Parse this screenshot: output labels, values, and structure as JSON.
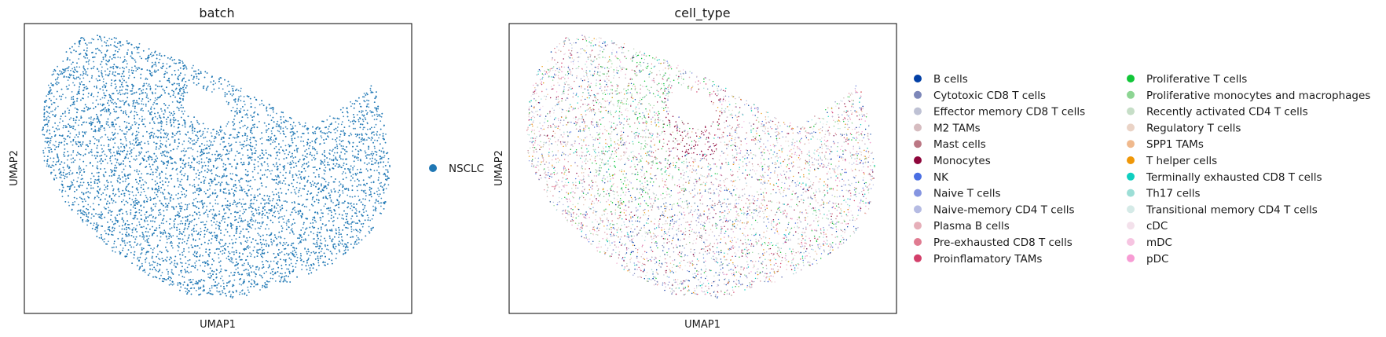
{
  "chart_data": [
    {
      "type": "scatter",
      "title": "batch",
      "xlabel": "UMAP1",
      "ylabel": "UMAP2",
      "grid": false,
      "ticks": "hidden",
      "legend_position": "right",
      "series": [
        {
          "name": "NSCLC",
          "color": "#1f77b4"
        }
      ]
    },
    {
      "type": "scatter",
      "title": "cell_type",
      "xlabel": "UMAP1",
      "ylabel": "UMAP2",
      "grid": false,
      "ticks": "hidden",
      "legend_position": "right",
      "legend_columns": 2,
      "series": [
        {
          "name": "B cells",
          "color": "#023fa5"
        },
        {
          "name": "Cytotoxic CD8 T cells",
          "color": "#7d87b9"
        },
        {
          "name": "Effector memory CD8 T cells",
          "color": "#bec1d4"
        },
        {
          "name": "M2 TAMs",
          "color": "#d6bcc0"
        },
        {
          "name": "Mast cells",
          "color": "#bb7784"
        },
        {
          "name": "Monocytes",
          "color": "#8e063b"
        },
        {
          "name": "NK",
          "color": "#4a6fe3"
        },
        {
          "name": "Naive T cells",
          "color": "#8595e1"
        },
        {
          "name": "Naive-memory CD4 T cells",
          "color": "#b5bbe3"
        },
        {
          "name": "Plasma B cells",
          "color": "#e6afb9"
        },
        {
          "name": "Pre-exhausted CD8 T cells",
          "color": "#e07b91"
        },
        {
          "name": "Proinflamatory TAMs",
          "color": "#d33f6a"
        },
        {
          "name": "Proliferative T cells",
          "color": "#11c638"
        },
        {
          "name": "Proliferative monocytes and macrophages",
          "color": "#8dd593"
        },
        {
          "name": "Recently activated CD4 T cells",
          "color": "#c6dec7"
        },
        {
          "name": "Regulatory T cells",
          "color": "#ead3c6"
        },
        {
          "name": "SPP1 TAMs",
          "color": "#f0b98d"
        },
        {
          "name": "T helper cells",
          "color": "#ef9708"
        },
        {
          "name": "Terminally exhausted CD8 T cells",
          "color": "#0fcfc0"
        },
        {
          "name": "Th17 cells",
          "color": "#9cded6"
        },
        {
          "name": "Transitional memory CD4 T cells",
          "color": "#d5eae7"
        },
        {
          "name": "cDC",
          "color": "#f3e1eb"
        },
        {
          "name": "mDC",
          "color": "#f6c4e1"
        },
        {
          "name": "pDC",
          "color": "#f79cd4"
        }
      ]
    }
  ]
}
